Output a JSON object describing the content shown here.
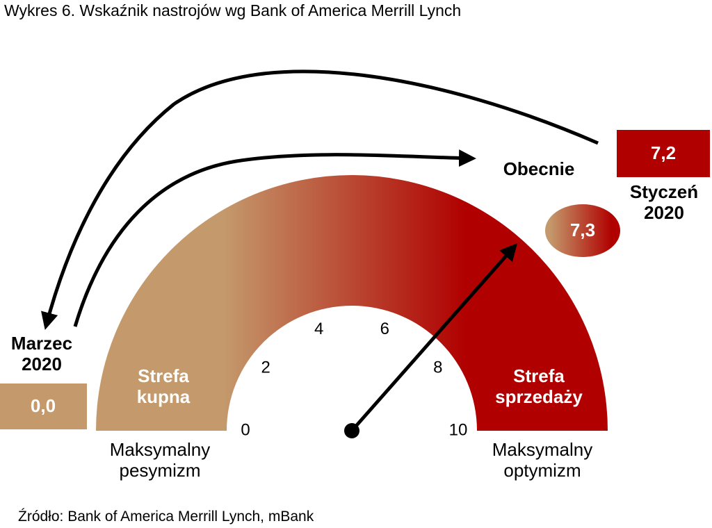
{
  "chart_data": {
    "type": "gauge",
    "title": "Wykres 6. Wskaźnik nastrojów wg Bank of America Merrill Lynch",
    "source": "Źródło: Bank of America Merrill Lynch, mBank",
    "range": [
      0,
      10
    ],
    "ticks": [
      0,
      2,
      4,
      6,
      8,
      10
    ],
    "colors": [
      "#c49a6c",
      "#b00000"
    ],
    "zones": [
      "Strefa kupna",
      "Strefa sprzedaży"
    ],
    "extremes": [
      "Maksymalny pesymizm",
      "Maksymalny optymizm"
    ],
    "readings": [
      {
        "name": "Obecnie",
        "value": 7.3,
        "value_label": "7,3"
      },
      {
        "name": "Styczeń 2020",
        "value": 7.2,
        "value_label": "7,2"
      },
      {
        "name": "Marzec 2020",
        "value": 0,
        "value_label": "0,0"
      }
    ]
  }
}
